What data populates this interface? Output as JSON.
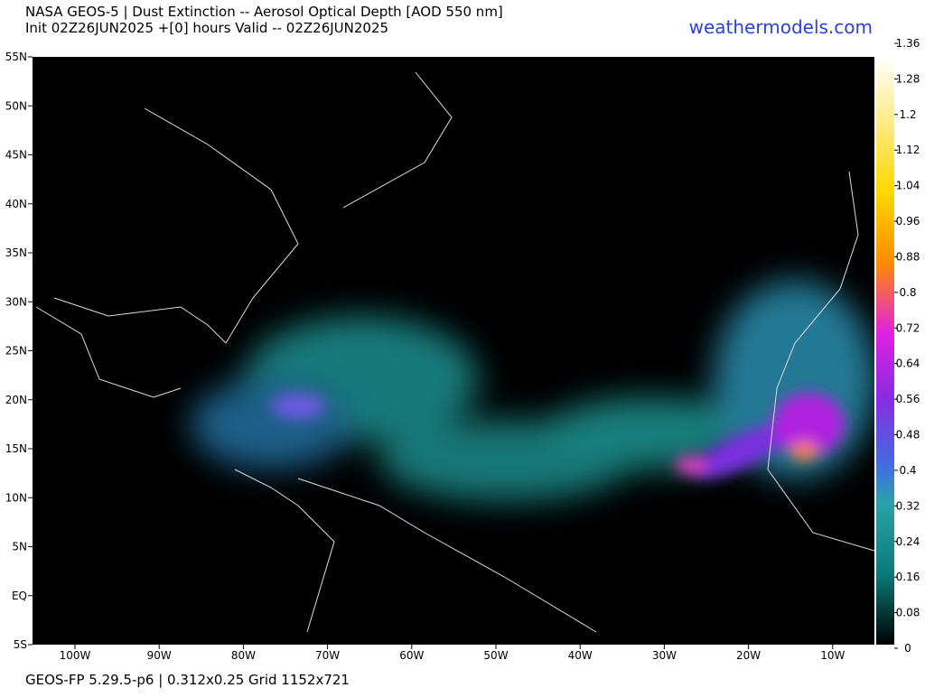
{
  "header": {
    "title": "NASA GEOS-5 | Dust Extinction -- Aerosol Optical Depth [AOD 550 nm]",
    "subtitle": "Init 02Z26JUN2025 +[0] hours Valid -- 02Z26JUN2025",
    "brand": "weathermodels.com"
  },
  "map": {
    "lat_labels": [
      "55N",
      "50N",
      "45N",
      "40N",
      "35N",
      "30N",
      "25N",
      "20N",
      "15N",
      "10N",
      "5N",
      "EQ",
      "5S"
    ],
    "lon_labels": [
      "100W",
      "90W",
      "80W",
      "70W",
      "60W",
      "50W",
      "40W",
      "30W",
      "20W",
      "10W"
    ]
  },
  "colorbar": {
    "range": [
      0,
      1.36
    ],
    "ticks": [
      0,
      0.08,
      0.16,
      0.24,
      0.32,
      0.4,
      0.48,
      0.56,
      0.64,
      0.72,
      0.8,
      0.88,
      0.96,
      1.04,
      1.12,
      1.2,
      1.28,
      1.36
    ]
  },
  "footer": "GEOS-FP 5.29.5-p6 | 0.312x0.25 Grid 1152x721"
}
